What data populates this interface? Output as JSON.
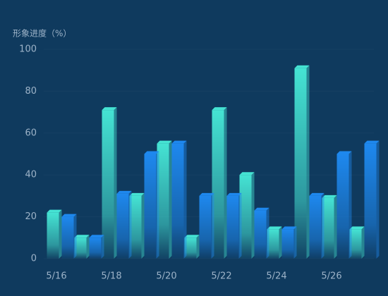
{
  "chart_data": {
    "type": "bar3d",
    "y_label": "形象进度（%）",
    "categories": [
      "5/16",
      null,
      "5/18",
      null,
      "5/20",
      null,
      "5/22",
      null,
      "5/24",
      null,
      "5/26",
      null
    ],
    "series": [
      {
        "color": "#45e3d3",
        "values": [
          22,
          10,
          71,
          30,
          55,
          10,
          71,
          40,
          14,
          91,
          29,
          14
        ]
      },
      {
        "color": "#1e88ee",
        "values": [
          20,
          10,
          31,
          50,
          55,
          30,
          30,
          23,
          14,
          30,
          50,
          55
        ]
      }
    ],
    "ylim": [
      0,
      100
    ],
    "yticks": [
      0,
      20,
      40,
      60,
      80,
      100
    ]
  }
}
